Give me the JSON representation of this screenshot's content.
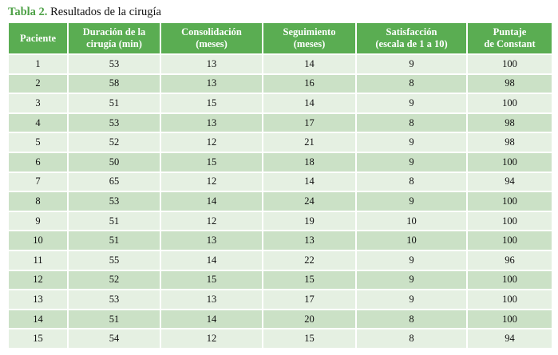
{
  "caption": {
    "label": "Tabla 2.",
    "text": "Resultados de la cirugía"
  },
  "colors": {
    "header_bg": "#5aad52",
    "row_light": "#e5f0e2",
    "row_dark": "#cbe1c6",
    "caption_label": "#4ea147"
  },
  "table": {
    "headers": [
      {
        "line1": "Paciente",
        "line2": ""
      },
      {
        "line1": "Duración de la",
        "line2": "cirugía (min)"
      },
      {
        "line1": "Consolidación",
        "line2": "(meses)"
      },
      {
        "line1": "Seguimiento",
        "line2": "(meses)"
      },
      {
        "line1": "Satisfacción",
        "line2": "(escala de 1 a 10)"
      },
      {
        "line1": "Puntaje",
        "line2": "de Constant"
      }
    ],
    "rows": [
      [
        "1",
        "53",
        "13",
        "14",
        "9",
        "100"
      ],
      [
        "2",
        "58",
        "13",
        "16",
        "8",
        "98"
      ],
      [
        "3",
        "51",
        "15",
        "14",
        "9",
        "100"
      ],
      [
        "4",
        "53",
        "13",
        "17",
        "8",
        "98"
      ],
      [
        "5",
        "52",
        "12",
        "21",
        "9",
        "98"
      ],
      [
        "6",
        "50",
        "15",
        "18",
        "9",
        "100"
      ],
      [
        "7",
        "65",
        "12",
        "14",
        "8",
        "94"
      ],
      [
        "8",
        "53",
        "14",
        "24",
        "9",
        "100"
      ],
      [
        "9",
        "51",
        "12",
        "19",
        "10",
        "100"
      ],
      [
        "10",
        "51",
        "13",
        "13",
        "10",
        "100"
      ],
      [
        "11",
        "55",
        "14",
        "22",
        "9",
        "96"
      ],
      [
        "12",
        "52",
        "15",
        "15",
        "9",
        "100"
      ],
      [
        "13",
        "53",
        "13",
        "17",
        "9",
        "100"
      ],
      [
        "14",
        "51",
        "14",
        "20",
        "8",
        "100"
      ],
      [
        "15",
        "54",
        "12",
        "15",
        "8",
        "94"
      ]
    ]
  }
}
